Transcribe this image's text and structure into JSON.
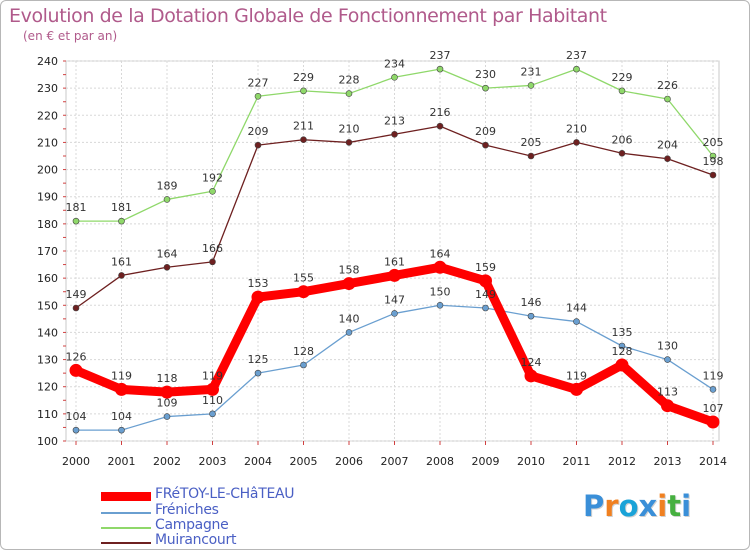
{
  "title": "Evolution de la Dotation Globale de Fonctionnement par Habitant",
  "subtitle": "(en € et par an)",
  "logo": {
    "text": "Proxiti",
    "letters": [
      "P",
      "r",
      "o",
      "x",
      "i",
      "t",
      "i"
    ],
    "colors": [
      "#3a8fd8",
      "#f08020",
      "#1aa3d8",
      "#3a8fd8",
      "#f08020",
      "#46b040",
      "#3a8fd8"
    ]
  },
  "chart_data": {
    "type": "line",
    "title": "Evolution de la Dotation Globale de Fonctionnement par Habitant",
    "subtitle": "(en € et par an)",
    "xlabel": "",
    "ylabel": "",
    "ylim": [
      100,
      240
    ],
    "yticks": [
      100,
      110,
      120,
      130,
      140,
      150,
      160,
      170,
      180,
      190,
      200,
      210,
      220,
      230,
      240
    ],
    "x": [
      "2000",
      "2001",
      "2002",
      "2003",
      "2004",
      "2005",
      "2006",
      "2007",
      "2008",
      "2009",
      "2010",
      "2011",
      "2012",
      "2013",
      "2014"
    ],
    "grid": true,
    "legend_position": "bottom-left",
    "series": [
      {
        "name": "FRéTOY-LE-CHâTEAU",
        "color": "#ff0000",
        "emphasis": true,
        "values": [
          126,
          119,
          118,
          119,
          153,
          155,
          158,
          161,
          164,
          159,
          124,
          119,
          128,
          113,
          107
        ]
      },
      {
        "name": "Fréniches",
        "color": "#6a9fd0",
        "emphasis": false,
        "values": [
          104,
          104,
          109,
          110,
          125,
          128,
          140,
          147,
          150,
          149,
          146,
          144,
          135,
          130,
          119
        ]
      },
      {
        "name": "Campagne",
        "color": "#8fd86a",
        "emphasis": false,
        "values": [
          181,
          181,
          189,
          192,
          227,
          229,
          228,
          234,
          237,
          230,
          231,
          237,
          229,
          226,
          205
        ]
      },
      {
        "name": "Muirancourt",
        "color": "#6e2020",
        "emphasis": false,
        "values": [
          149,
          161,
          164,
          166,
          209,
          211,
          210,
          213,
          216,
          209,
          205,
          210,
          206,
          204,
          198
        ]
      }
    ]
  }
}
